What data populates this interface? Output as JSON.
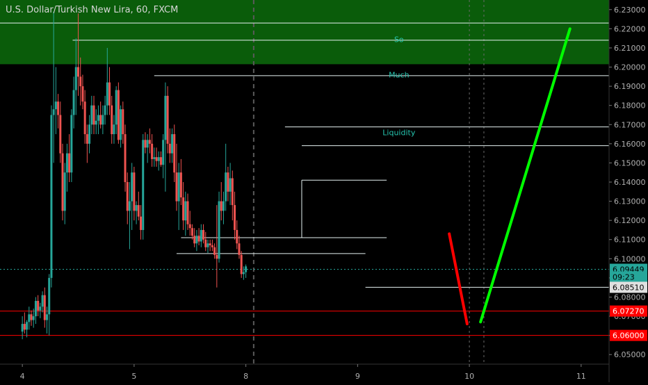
{
  "chart_data": {
    "type": "candlestick",
    "title": "U.S. Dollar/Turkish New Lira, 60, FXCM",
    "ylim": [
      6.045,
      6.235
    ],
    "y_ticks": [
      "6.23000",
      "6.22000",
      "6.21000",
      "6.20000",
      "6.19000",
      "6.18000",
      "6.17000",
      "6.16000",
      "6.15000",
      "6.14000",
      "6.13000",
      "6.12000",
      "6.11000",
      "6.10000",
      "6.09000",
      "6.08000",
      "6.07000",
      "6.06000",
      "6.05000"
    ],
    "x_ticks": [
      {
        "label": "4",
        "x": 0
      },
      {
        "label": "5",
        "x": 10
      },
      {
        "label": "8",
        "x": 20
      },
      {
        "label": "9",
        "x": 30
      },
      {
        "label": "10",
        "x": 40
      },
      {
        "label": "11",
        "x": 50
      }
    ],
    "xlim": [
      -2,
      52.5
    ],
    "candle_spacing": 0.2,
    "colors": {
      "up": "#26a69a",
      "down": "#ef5350",
      "zone": "#0a5c0a",
      "level": "#e6f2f2",
      "red_line": "#ff0000"
    },
    "candles": [
      [
        6.062,
        6.07,
        6.058,
        6.066
      ],
      [
        6.066,
        6.072,
        6.061,
        6.063
      ],
      [
        6.063,
        6.068,
        6.059,
        6.067
      ],
      [
        6.067,
        6.075,
        6.063,
        6.071
      ],
      [
        6.071,
        6.073,
        6.065,
        6.068
      ],
      [
        6.068,
        6.074,
        6.064,
        6.07
      ],
      [
        6.07,
        6.08,
        6.066,
        6.078
      ],
      [
        6.078,
        6.081,
        6.07,
        6.073
      ],
      [
        6.073,
        6.077,
        6.069,
        6.075
      ],
      [
        6.075,
        6.083,
        6.072,
        6.081
      ],
      [
        6.081,
        6.085,
        6.064,
        6.068
      ],
      [
        6.068,
        6.075,
        6.061,
        6.071
      ],
      [
        6.071,
        6.092,
        6.06,
        6.09
      ],
      [
        6.09,
        6.18,
        6.085,
        6.175
      ],
      [
        6.175,
        6.229,
        6.15,
        6.178
      ],
      [
        6.178,
        6.2,
        6.165,
        6.182
      ],
      [
        6.182,
        6.186,
        6.168,
        6.175
      ],
      [
        6.175,
        6.182,
        6.15,
        6.155
      ],
      [
        6.155,
        6.16,
        6.12,
        6.125
      ],
      [
        6.125,
        6.15,
        6.118,
        6.145
      ],
      [
        6.145,
        6.16,
        6.135,
        6.155
      ],
      [
        6.155,
        6.165,
        6.14,
        6.145
      ],
      [
        6.145,
        6.178,
        6.14,
        6.175
      ],
      [
        6.175,
        6.195,
        6.168,
        6.188
      ],
      [
        6.188,
        6.215,
        6.175,
        6.2
      ],
      [
        6.2,
        6.228,
        6.185,
        6.195
      ],
      [
        6.195,
        6.205,
        6.18,
        6.19
      ],
      [
        6.19,
        6.196,
        6.178,
        6.182
      ],
      [
        6.182,
        6.188,
        6.16,
        6.165
      ],
      [
        6.165,
        6.17,
        6.15,
        6.16
      ],
      [
        6.16,
        6.175,
        6.155,
        6.17
      ],
      [
        6.17,
        6.185,
        6.165,
        6.18
      ],
      [
        6.18,
        6.185,
        6.165,
        6.17
      ],
      [
        6.17,
        6.178,
        6.165,
        6.172
      ],
      [
        6.172,
        6.18,
        6.165,
        6.175
      ],
      [
        6.175,
        6.182,
        6.168,
        6.17
      ],
      [
        6.17,
        6.18,
        6.165,
        6.175
      ],
      [
        6.175,
        6.185,
        6.17,
        6.18
      ],
      [
        6.18,
        6.21,
        6.175,
        6.192
      ],
      [
        6.192,
        6.2,
        6.175,
        6.18
      ],
      [
        6.18,
        6.185,
        6.16,
        6.165
      ],
      [
        6.165,
        6.175,
        6.16,
        6.17
      ],
      [
        6.17,
        6.19,
        6.165,
        6.188
      ],
      [
        6.188,
        6.192,
        6.16,
        6.162
      ],
      [
        6.162,
        6.18,
        6.158,
        6.178
      ],
      [
        6.178,
        6.182,
        6.16,
        6.165
      ],
      [
        6.165,
        6.17,
        6.135,
        6.14
      ],
      [
        6.14,
        6.145,
        6.118,
        6.125
      ],
      [
        6.125,
        6.14,
        6.105,
        6.13
      ],
      [
        6.13,
        6.15,
        6.115,
        6.145
      ],
      [
        6.145,
        6.148,
        6.12,
        6.125
      ],
      [
        6.125,
        6.13,
        6.118,
        6.128
      ],
      [
        6.128,
        6.135,
        6.12,
        6.122
      ],
      [
        6.122,
        6.128,
        6.11,
        6.115
      ],
      [
        6.115,
        6.165,
        6.11,
        6.162
      ],
      [
        6.162,
        6.166,
        6.155,
        6.158
      ],
      [
        6.158,
        6.165,
        6.15,
        6.162
      ],
      [
        6.162,
        6.168,
        6.155,
        6.16
      ],
      [
        6.16,
        6.165,
        6.148,
        6.152
      ],
      [
        6.152,
        6.158,
        6.148,
        6.153
      ],
      [
        6.153,
        6.158,
        6.148,
        6.151
      ],
      [
        6.151,
        6.156,
        6.146,
        6.153
      ],
      [
        6.153,
        6.156,
        6.148,
        6.149
      ],
      [
        6.149,
        6.165,
        6.142,
        6.162
      ],
      [
        6.162,
        6.192,
        6.135,
        6.185
      ],
      [
        6.185,
        6.19,
        6.155,
        6.16
      ],
      [
        6.16,
        6.168,
        6.15,
        6.155
      ],
      [
        6.155,
        6.168,
        6.15,
        6.165
      ],
      [
        6.165,
        6.17,
        6.14,
        6.145
      ],
      [
        6.145,
        6.16,
        6.125,
        6.13
      ],
      [
        6.13,
        6.15,
        6.115,
        6.145
      ],
      [
        6.145,
        6.152,
        6.128,
        6.132
      ],
      [
        6.132,
        6.14,
        6.115,
        6.12
      ],
      [
        6.12,
        6.135,
        6.112,
        6.13
      ],
      [
        6.13,
        6.134,
        6.115,
        6.118
      ],
      [
        6.118,
        6.125,
        6.112,
        6.116
      ],
      [
        6.116,
        6.118,
        6.11,
        6.112
      ],
      [
        6.112,
        6.116,
        6.106,
        6.108
      ],
      [
        6.108,
        6.115,
        6.104,
        6.112
      ],
      [
        6.112,
        6.116,
        6.107,
        6.109
      ],
      [
        6.109,
        6.118,
        6.106,
        6.115
      ],
      [
        6.115,
        6.118,
        6.108,
        6.11
      ],
      [
        6.11,
        6.114,
        6.104,
        6.106
      ],
      [
        6.106,
        6.11,
        6.103,
        6.108
      ],
      [
        6.108,
        6.11,
        6.104,
        6.107
      ],
      [
        6.107,
        6.11,
        6.104,
        6.106
      ],
      [
        6.106,
        6.108,
        6.1,
        6.102
      ],
      [
        6.102,
        6.128,
        6.085,
        6.1
      ],
      [
        6.1,
        6.135,
        6.098,
        6.13
      ],
      [
        6.13,
        6.14,
        6.12,
        6.125
      ],
      [
        6.125,
        6.135,
        6.118,
        6.13
      ],
      [
        6.13,
        6.16,
        6.125,
        6.145
      ],
      [
        6.145,
        6.148,
        6.13,
        6.135
      ],
      [
        6.135,
        6.15,
        6.128,
        6.142
      ],
      [
        6.142,
        6.146,
        6.12,
        6.128
      ],
      [
        6.128,
        6.135,
        6.11,
        6.115
      ],
      [
        6.115,
        6.12,
        6.105,
        6.108
      ],
      [
        6.108,
        6.112,
        6.1,
        6.102
      ],
      [
        6.102,
        6.104,
        6.09,
        6.092
      ],
      [
        6.092,
        6.096,
        6.089,
        6.093
      ],
      [
        6.093,
        6.097,
        6.09,
        6.096
      ]
    ],
    "levels": [
      {
        "price": 6.223,
        "from": -2.0,
        "to": 52.5
      },
      {
        "price": 6.214,
        "from": 4.5,
        "to": 52.5
      },
      {
        "price": 6.1955,
        "from": 11.8,
        "to": 52.5
      },
      {
        "price": 6.1688,
        "from": 23.5,
        "to": 52.5
      },
      {
        "price": 6.159,
        "from": 25.0,
        "to": 52.5
      },
      {
        "price": 6.141,
        "from": 25.0,
        "to": 32.6,
        "drop_to": 6.111
      },
      {
        "price": 6.111,
        "from": 14.2,
        "to": 32.6
      },
      {
        "price": 6.1027,
        "from": 13.8,
        "to": 30.7
      },
      {
        "price": 6.0851,
        "from": 30.7,
        "to": 52.5
      },
      {
        "price": 6.0945,
        "from": -2.0,
        "to": 52.5,
        "dotted": true
      }
    ],
    "resistance_zone": [
      6.2015,
      6.235
    ],
    "annotations": [
      "So",
      "Much",
      "Liquidity"
    ],
    "annotation_positions": [
      [
        33.7,
        6.213
      ],
      [
        33.7,
        6.1945
      ],
      [
        33.7,
        6.1645
      ]
    ],
    "projection": {
      "down": {
        "color": "#ff0000",
        "from": [
          38.2,
          6.113
        ],
        "to": [
          39.8,
          6.066
        ]
      },
      "up": {
        "color": "#00ff00",
        "from": [
          41.0,
          6.067
        ],
        "to": [
          49.0,
          6.22
        ]
      }
    },
    "vlines": [
      {
        "x": 20.7,
        "style": "dash"
      },
      {
        "x": 40.0,
        "style": "dot"
      },
      {
        "x": 41.3,
        "style": "dot"
      }
    ],
    "price_tags": [
      {
        "label": "6.09449",
        "price": 6.0945,
        "bg": "#26a69a",
        "fg": "#000000"
      },
      {
        "label": "09:23",
        "price": 6.0905,
        "bg": "#26a69a",
        "fg": "#000000"
      },
      {
        "label": "6.08510",
        "price": 6.0851,
        "bg": "#e0e0e0",
        "fg": "#000000"
      },
      {
        "label": "6.07270",
        "price": 6.0727,
        "bg": "#ff0000",
        "fg": "#ffffff"
      },
      {
        "label": "6.06000",
        "price": 6.06,
        "bg": "#ff0000",
        "fg": "#ffffff"
      }
    ],
    "red_levels": [
      6.0727,
      6.06
    ],
    "grid": false,
    "legend": "none"
  }
}
